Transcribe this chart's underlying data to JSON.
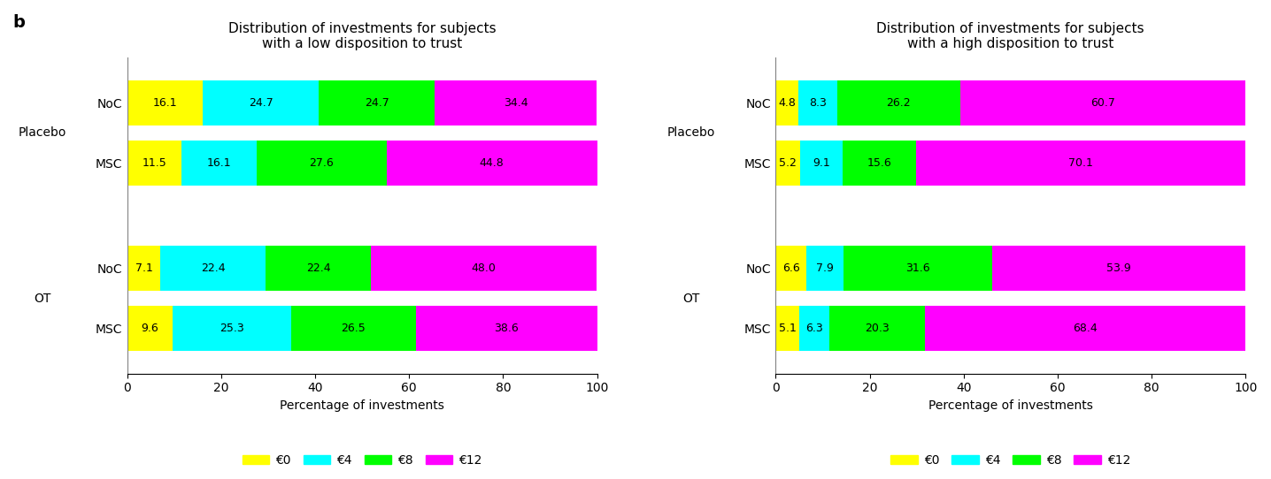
{
  "left_title": "Distribution of investments for subjects\nwith a low disposition to trust",
  "right_title": "Distribution of investments for subjects\nwith a high disposition to trust",
  "xlabel": "Percentage of investments",
  "panel_label": "b",
  "colors": {
    "e0": "#FFFF00",
    "e4": "#00FFFF",
    "e8": "#00FF00",
    "e12": "#FF00FF"
  },
  "legend_labels": [
    "€0",
    "€4",
    "€8",
    "€12"
  ],
  "left_data": {
    "bars": [
      {
        "label": "NoC",
        "group": "Placebo",
        "e0": 16.1,
        "e4": 24.7,
        "e8": 24.7,
        "e12": 34.4
      },
      {
        "label": "MSC",
        "group": "Placebo",
        "e0": 11.5,
        "e4": 16.1,
        "e8": 27.6,
        "e12": 44.8
      },
      {
        "label": "NoC",
        "group": "OT",
        "e0": 7.1,
        "e4": 22.4,
        "e8": 22.4,
        "e12": 48.0
      },
      {
        "label": "MSC",
        "group": "OT",
        "e0": 9.6,
        "e4": 25.3,
        "e8": 26.5,
        "e12": 38.6
      }
    ]
  },
  "right_data": {
    "bars": [
      {
        "label": "NoC",
        "group": "Placebo",
        "e0": 4.8,
        "e4": 8.3,
        "e8": 26.2,
        "e12": 60.7
      },
      {
        "label": "MSC",
        "group": "Placebo",
        "e0": 5.2,
        "e4": 9.1,
        "e8": 15.6,
        "e12": 70.1
      },
      {
        "label": "NoC",
        "group": "OT",
        "e0": 6.6,
        "e4": 7.9,
        "e8": 31.6,
        "e12": 53.9
      },
      {
        "label": "MSC",
        "group": "OT",
        "e0": 5.1,
        "e4": 6.3,
        "e8": 20.3,
        "e12": 68.4
      }
    ]
  },
  "bar_height": 0.6,
  "xlim": [
    0,
    100
  ],
  "xticks": [
    0,
    20,
    40,
    60,
    80,
    100
  ],
  "fontsize_title": 11,
  "fontsize_labels": 10,
  "fontsize_bar_text": 9,
  "fontsize_group": 10,
  "fontsize_ytick": 10,
  "fontsize_legend": 10,
  "fontsize_panel": 14
}
